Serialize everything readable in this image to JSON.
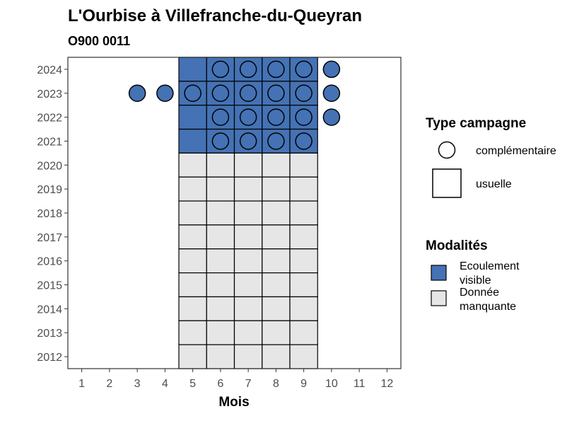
{
  "chart_data": {
    "type": "heatmap",
    "title": "L'Ourbise à Villefranche-du-Queyran",
    "subtitle": "O900 0011",
    "xlabel": "Mois",
    "ylabel": "",
    "x_ticks": [
      "1",
      "2",
      "3",
      "4",
      "5",
      "6",
      "7",
      "8",
      "9",
      "10",
      "11",
      "12"
    ],
    "y_ticks": [
      "2012",
      "2013",
      "2014",
      "2015",
      "2016",
      "2017",
      "2018",
      "2019",
      "2020",
      "2021",
      "2022",
      "2023",
      "2024"
    ],
    "xlim": [
      0.5,
      12.5
    ],
    "ylim": [
      2011.5,
      2024.5
    ],
    "grid": false,
    "colors": {
      "ecoulement_visible": "#4472B4",
      "donnee_manquante": "#E6E6E6",
      "outline": "#000000"
    },
    "usuelle": [
      {
        "year": 2024,
        "months": [
          5,
          6,
          7,
          8,
          9
        ],
        "modalite": "Ecoulement visible"
      },
      {
        "year": 2023,
        "months": [
          5,
          6,
          7,
          8,
          9
        ],
        "modalite": "Ecoulement visible"
      },
      {
        "year": 2022,
        "months": [
          5,
          6,
          7,
          8,
          9
        ],
        "modalite": "Ecoulement visible"
      },
      {
        "year": 2021,
        "months": [
          5,
          6,
          7,
          8,
          9
        ],
        "modalite": "Ecoulement visible"
      },
      {
        "year": 2020,
        "months": [
          5,
          6,
          7,
          8,
          9
        ],
        "modalite": "Donnée manquante"
      },
      {
        "year": 2019,
        "months": [
          5,
          6,
          7,
          8,
          9
        ],
        "modalite": "Donnée manquante"
      },
      {
        "year": 2018,
        "months": [
          5,
          6,
          7,
          8,
          9
        ],
        "modalite": "Donnée manquante"
      },
      {
        "year": 2017,
        "months": [
          5,
          6,
          7,
          8,
          9
        ],
        "modalite": "Donnée manquante"
      },
      {
        "year": 2016,
        "months": [
          5,
          6,
          7,
          8,
          9
        ],
        "modalite": "Donnée manquante"
      },
      {
        "year": 2015,
        "months": [
          5,
          6,
          7,
          8,
          9
        ],
        "modalite": "Donnée manquante"
      },
      {
        "year": 2014,
        "months": [
          5,
          6,
          7,
          8,
          9
        ],
        "modalite": "Donnée manquante"
      },
      {
        "year": 2013,
        "months": [
          5,
          6,
          7,
          8,
          9
        ],
        "modalite": "Donnée manquante"
      },
      {
        "year": 2012,
        "months": [
          5,
          6,
          7,
          8,
          9
        ],
        "modalite": "Donnée manquante"
      }
    ],
    "complementaire": [
      {
        "year": 2024,
        "months": [
          6,
          7,
          8,
          9,
          10
        ],
        "modalite": "Ecoulement visible"
      },
      {
        "year": 2023,
        "months": [
          3,
          4,
          5,
          6,
          7,
          8,
          9,
          10
        ],
        "modalite": "Ecoulement visible"
      },
      {
        "year": 2022,
        "months": [
          6,
          7,
          8,
          9,
          10
        ],
        "modalite": "Ecoulement visible"
      },
      {
        "year": 2021,
        "months": [
          6,
          7,
          8,
          9
        ],
        "modalite": "Ecoulement visible"
      }
    ],
    "legend_placement": "right",
    "legend": {
      "shape_title": "Type campagne",
      "shape_items": [
        {
          "label": "complémentaire",
          "shape": "circle"
        },
        {
          "label": "usuelle",
          "shape": "square"
        }
      ],
      "fill_title": "Modalités",
      "fill_items": [
        {
          "label_lines": [
            "Ecoulement",
            "visible"
          ],
          "color": "#4472B4"
        },
        {
          "label_lines": [
            "Donnée",
            "manquante"
          ],
          "color": "#E6E6E6"
        }
      ]
    }
  }
}
